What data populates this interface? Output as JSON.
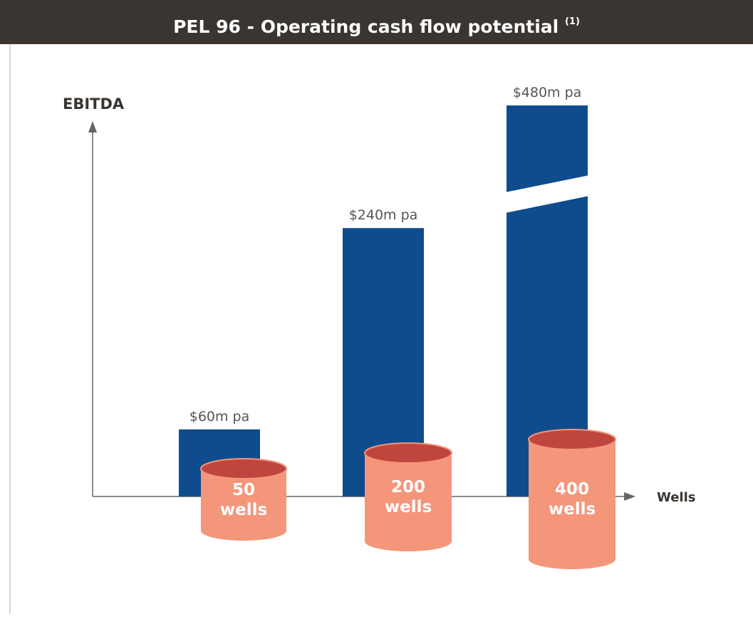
{
  "chart_data": {
    "type": "bar",
    "title": "PEL 96 - Operating cash flow potential",
    "title_note": "(1)",
    "y_label": "EBITDA",
    "x_label": "Wells",
    "categories": [
      "50\nwells",
      "200\nwells",
      "400\nwells"
    ],
    "values": [
      60,
      240,
      480
    ],
    "value_labels": [
      "$60m pa",
      "$240m pa",
      "$480m pa"
    ],
    "color": "#0e4c8d",
    "cylinder_color": "#f4967a",
    "cylinder_top_color": "#bf463e"
  }
}
